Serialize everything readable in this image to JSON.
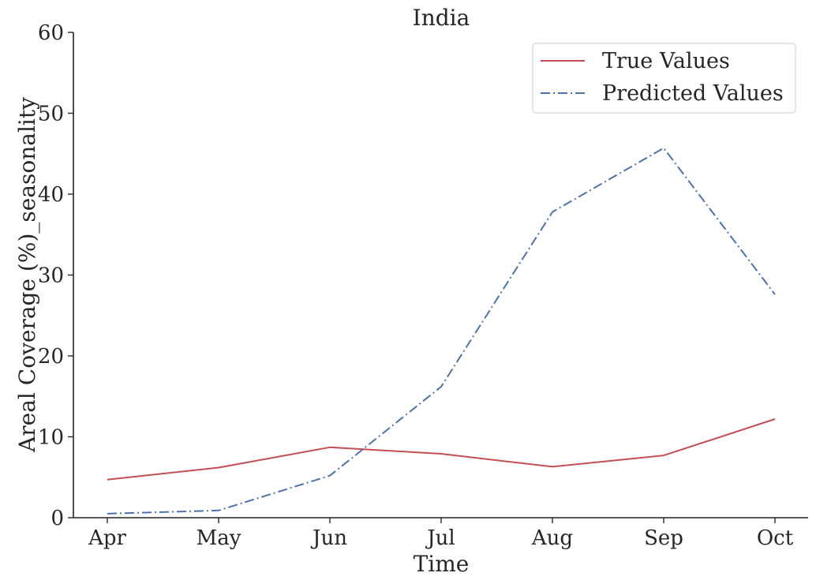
{
  "chart_data": {
    "type": "line",
    "title": "India",
    "xlabel": "Time",
    "ylabel": "Areal Coverage (%)_seasonality",
    "categories": [
      "Apr",
      "May",
      "Jun",
      "Jul",
      "Aug",
      "Sep",
      "Oct"
    ],
    "ylim": [
      0,
      60
    ],
    "yticks": [
      "0",
      "10",
      "20",
      "30",
      "40",
      "50",
      "60"
    ],
    "grid": false,
    "legend_position": "top-right",
    "series": [
      {
        "name": "True Values",
        "color": "#c44e52",
        "linestyle": "solid",
        "values": [
          4.7,
          6.2,
          8.7,
          7.9,
          6.3,
          7.7,
          12.2
        ]
      },
      {
        "name": "Predicted Values",
        "color": "#4c72b0",
        "linestyle": "dashdot",
        "values": [
          0.5,
          0.9,
          5.2,
          16.2,
          37.8,
          45.7,
          27.6
        ]
      }
    ]
  }
}
